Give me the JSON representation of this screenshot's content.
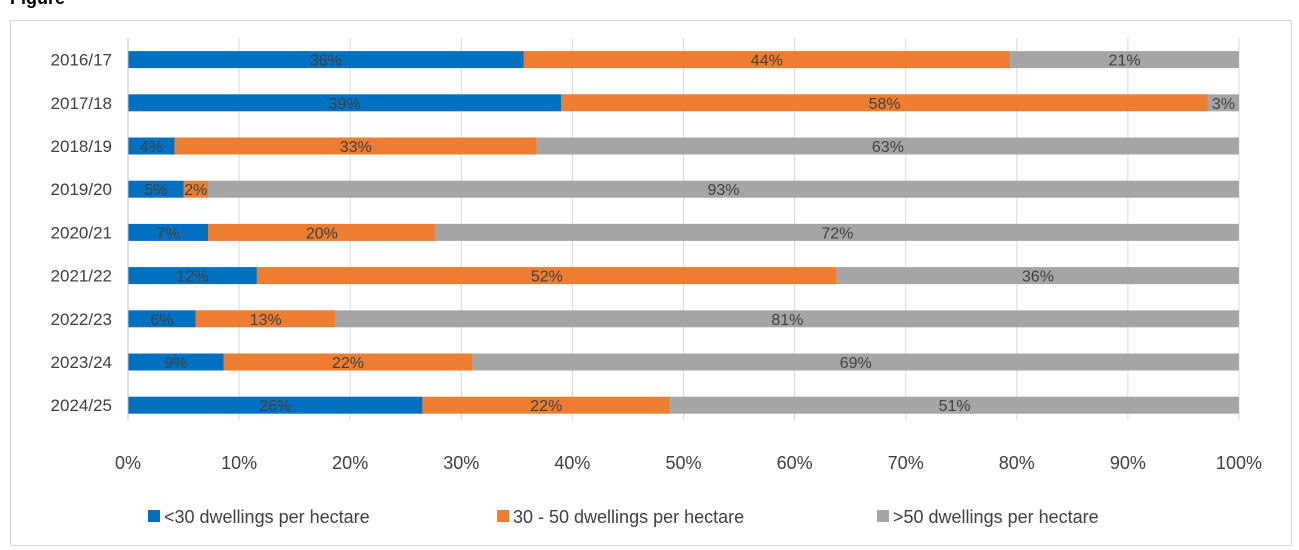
{
  "header": {
    "title_partial": "Figure"
  },
  "chart_data": {
    "type": "bar",
    "orientation": "horizontal",
    "stacked": "percent",
    "categories": [
      "2016/17",
      "2017/18",
      "2018/19",
      "2019/20",
      "2020/21",
      "2021/22",
      "2022/23",
      "2023/24",
      "2024/25"
    ],
    "series": [
      {
        "name": "<30 dwellings per hectare",
        "color": "#0070C0",
        "values": [
          0.356,
          0.39,
          0.042,
          0.05,
          0.072,
          0.116,
          0.061,
          0.086,
          0.265
        ],
        "labels": [
          "36%",
          "39%",
          "4%",
          "5%",
          "7%",
          "12%",
          "6%",
          "9%",
          "26%"
        ]
      },
      {
        "name": "30 - 50 dwellings per hectare",
        "color": "#ED7D31",
        "values": [
          0.438,
          0.582,
          0.326,
          0.022,
          0.205,
          0.522,
          0.126,
          0.224,
          0.223
        ],
        "labels": [
          "44%",
          "58%",
          "33%",
          "2%",
          "20%",
          "52%",
          "13%",
          "22%",
          "22%"
        ]
      },
      {
        "name": ">50 dwellings per hectare",
        "color": "#A5A5A5",
        "values": [
          0.206,
          0.028,
          0.632,
          0.928,
          0.723,
          0.362,
          0.813,
          0.69,
          0.512
        ],
        "labels": [
          "21%",
          "3%",
          "63%",
          "93%",
          "72%",
          "36%",
          "81%",
          "69%",
          "51%"
        ]
      }
    ],
    "x_ticks": [
      "0%",
      "10%",
      "20%",
      "30%",
      "40%",
      "50%",
      "60%",
      "70%",
      "80%",
      "90%",
      "100%"
    ],
    "xlim": [
      0,
      1
    ],
    "grid": "vertical",
    "legend_position": "bottom"
  }
}
